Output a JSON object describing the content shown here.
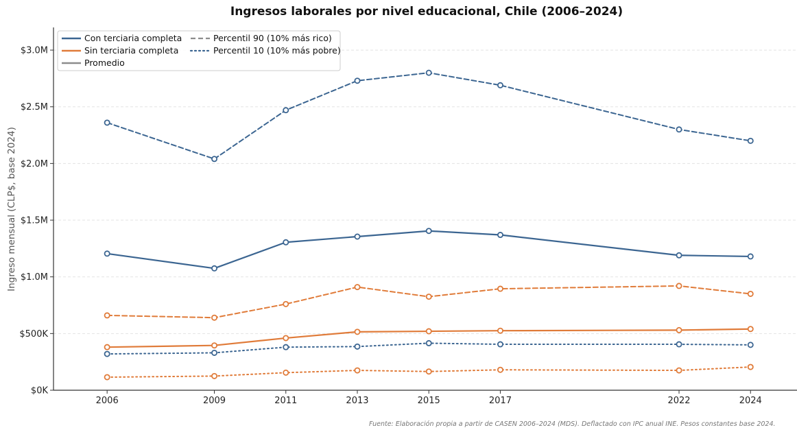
{
  "chart_data": {
    "type": "line",
    "title": "Ingresos laborales por nivel educacional, Chile (2006–2024)",
    "xlabel": "",
    "ylabel": "Ingreso mensual (CLP$, base 2024)",
    "x": [
      2006,
      2009,
      2011,
      2013,
      2015,
      2017,
      2022,
      2024
    ],
    "x_tick_labels": [
      "2006",
      "2009",
      "2011",
      "2013",
      "2015",
      "2017",
      "2022",
      "2024"
    ],
    "xlim": [
      2004.5,
      2025.3
    ],
    "ylim": [
      0,
      3200000
    ],
    "y_ticks": [
      0,
      500000,
      1000000,
      1500000,
      2000000,
      2500000,
      3000000
    ],
    "y_tick_labels": [
      "$0K",
      "$500K",
      "$1.0M",
      "$1.5M",
      "$2.0M",
      "$2.5M",
      "$3.0M"
    ],
    "grid": "horizontal dashed",
    "legend_placement": "top-left",
    "legend": [
      {
        "label": "Con terciaria completa",
        "color": "#3b6591",
        "style": "solid"
      },
      {
        "label": "Sin terciaria completa",
        "color": "#e07b39",
        "style": "solid"
      },
      {
        "label": "Promedio",
        "color": "#8c8c8c",
        "style": "solid"
      },
      {
        "label": "Percentil 90 (10% más rico)",
        "color": "#8c8c8c",
        "style": "dashed"
      },
      {
        "label": "Percentil 10 (10% más pobre)",
        "color": "#3b6591",
        "style": "dotted"
      }
    ],
    "series": [
      {
        "group": "Con terciaria completa",
        "stat": "Percentil 90 (10% más rico)",
        "color": "#3b6591",
        "style": "dashed",
        "values": [
          2360000,
          2040000,
          2470000,
          2730000,
          2800000,
          2690000,
          2300000,
          2200000
        ]
      },
      {
        "group": "Con terciaria completa",
        "stat": "Promedio",
        "color": "#3b6591",
        "style": "solid",
        "values": [
          1205000,
          1075000,
          1305000,
          1355000,
          1405000,
          1370000,
          1190000,
          1180000
        ]
      },
      {
        "group": "Con terciaria completa",
        "stat": "Percentil 10 (10% más pobre)",
        "color": "#3b6591",
        "style": "dotted",
        "values": [
          320000,
          330000,
          380000,
          385000,
          415000,
          405000,
          405000,
          400000
        ]
      },
      {
        "group": "Sin terciaria completa",
        "stat": "Percentil 90 (10% más rico)",
        "color": "#e07b39",
        "style": "dashed",
        "values": [
          660000,
          640000,
          760000,
          910000,
          825000,
          895000,
          920000,
          850000
        ]
      },
      {
        "group": "Sin terciaria completa",
        "stat": "Promedio",
        "color": "#e07b39",
        "style": "solid",
        "values": [
          380000,
          395000,
          460000,
          515000,
          520000,
          525000,
          530000,
          540000
        ]
      },
      {
        "group": "Sin terciaria completa",
        "stat": "Percentil 10 (10% más pobre)",
        "color": "#e07b39",
        "style": "dotted",
        "values": [
          115000,
          125000,
          155000,
          175000,
          165000,
          180000,
          175000,
          205000
        ]
      }
    ],
    "source_note": "Fuente: Elaboración propia a partir de CASEN 2006–2024 (MDS). Deflactado con IPC anual INE. Pesos constantes base 2024."
  }
}
